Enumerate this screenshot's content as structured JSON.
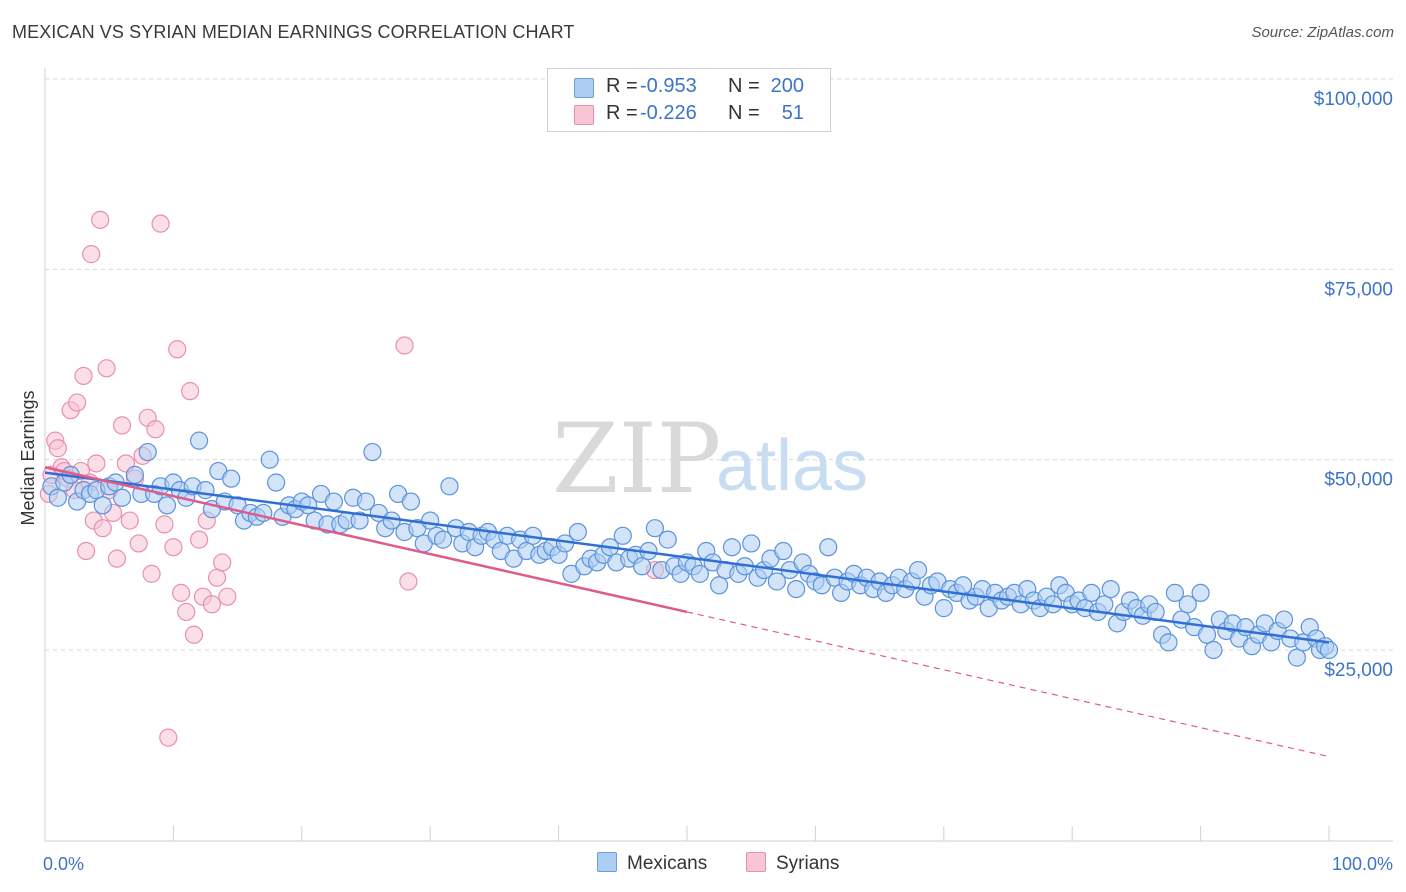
{
  "title": "MEXICAN VS SYRIAN MEDIAN EARNINGS CORRELATION CHART",
  "source": "Source: ZipAtlas.com",
  "watermark": {
    "zip": "ZIP",
    "atlas": "atlas"
  },
  "legend": {
    "r_label": "R = ",
    "n_label": "N = ",
    "rows": [
      {
        "r": "-0.953",
        "n": "200",
        "fill": "#aecdf3",
        "stroke": "#6b9fe0"
      },
      {
        "r": "-0.226",
        "n": "51",
        "fill": "#f8c5d5",
        "stroke": "#e98fae"
      }
    ]
  },
  "bottom_legend": {
    "mexicans": "Mexicans",
    "syrians": "Syrians"
  },
  "colors": {
    "mexican_fill": "#aecdf3",
    "mexican_stroke": "#5b93db",
    "mexican_line": "#2f6fd6",
    "syrian_fill": "#f8c5d5",
    "syrian_stroke": "#e98fae",
    "syrian_line": "#e05a8a",
    "grid": "#d8d8d8",
    "axis_text": "#3d73c9"
  },
  "chart_data": {
    "type": "scatter",
    "title": "MEXICAN VS SYRIAN MEDIAN EARNINGS CORRELATION CHART",
    "xlabel": "",
    "ylabel": "Median Earnings",
    "xlim": [
      0,
      100
    ],
    "ylim": [
      5000,
      105000
    ],
    "x_tick_labels": [
      "0.0%",
      "100.0%"
    ],
    "y_ticks": [
      25000,
      50000,
      75000,
      100000
    ],
    "y_tick_labels": [
      "$25,000",
      "$50,000",
      "$75,000",
      "$100,000"
    ],
    "grid": "horizontal dashed",
    "legend_position": "top-center",
    "series": [
      {
        "name": "Mexicans",
        "r": -0.953,
        "n": 200,
        "trend": {
          "x": [
            0,
            100
          ],
          "y": [
            48300,
            26000
          ]
        },
        "points": [
          [
            0.5,
            46.5
          ],
          [
            1.0,
            45.0
          ],
          [
            1.5,
            47.0
          ],
          [
            2.0,
            48.0
          ],
          [
            2.5,
            44.5
          ],
          [
            3.0,
            46.0
          ],
          [
            3.5,
            45.5
          ],
          [
            4.0,
            46.0
          ],
          [
            4.5,
            44.0
          ],
          [
            5.0,
            46.5
          ],
          [
            5.5,
            47.0
          ],
          [
            6.0,
            45.0
          ],
          [
            7.0,
            48.0
          ],
          [
            7.5,
            45.5
          ],
          [
            8.0,
            51.0
          ],
          [
            8.5,
            45.5
          ],
          [
            9.0,
            46.5
          ],
          [
            9.5,
            44.0
          ],
          [
            10.0,
            47.0
          ],
          [
            10.5,
            46.0
          ],
          [
            11.0,
            45.0
          ],
          [
            11.5,
            46.5
          ],
          [
            12.0,
            52.5
          ],
          [
            12.5,
            46.0
          ],
          [
            13.0,
            43.5
          ],
          [
            13.5,
            48.5
          ],
          [
            14.0,
            44.5
          ],
          [
            14.5,
            47.5
          ],
          [
            15.0,
            44.0
          ],
          [
            15.5,
            42.0
          ],
          [
            16.0,
            43.0
          ],
          [
            16.5,
            42.5
          ],
          [
            17.0,
            43.0
          ],
          [
            17.5,
            50.0
          ],
          [
            18.0,
            47.0
          ],
          [
            18.5,
            42.5
          ],
          [
            19.0,
            44.0
          ],
          [
            19.5,
            43.5
          ],
          [
            20.0,
            44.5
          ],
          [
            20.5,
            44.0
          ],
          [
            21.0,
            42.0
          ],
          [
            21.5,
            45.5
          ],
          [
            22.0,
            41.5
          ],
          [
            22.5,
            44.5
          ],
          [
            23.0,
            41.5
          ],
          [
            23.5,
            42.0
          ],
          [
            24.0,
            45.0
          ],
          [
            24.5,
            42.0
          ],
          [
            25.0,
            44.5
          ],
          [
            25.5,
            51.0
          ],
          [
            26.0,
            43.0
          ],
          [
            26.5,
            41.0
          ],
          [
            27.0,
            42.0
          ],
          [
            27.5,
            45.5
          ],
          [
            28.0,
            40.5
          ],
          [
            28.5,
            44.5
          ],
          [
            29.0,
            41.0
          ],
          [
            29.5,
            39.0
          ],
          [
            30.0,
            42.0
          ],
          [
            30.5,
            40.0
          ],
          [
            31.0,
            39.5
          ],
          [
            31.5,
            46.5
          ],
          [
            32.0,
            41.0
          ],
          [
            32.5,
            39.0
          ],
          [
            33.0,
            40.5
          ],
          [
            33.5,
            38.5
          ],
          [
            34.0,
            40.0
          ],
          [
            34.5,
            40.5
          ],
          [
            35.0,
            39.5
          ],
          [
            35.5,
            38.0
          ],
          [
            36.0,
            40.0
          ],
          [
            36.5,
            37.0
          ],
          [
            37.0,
            39.5
          ],
          [
            37.5,
            38.0
          ],
          [
            38.0,
            40.0
          ],
          [
            38.5,
            37.5
          ],
          [
            39.0,
            38.0
          ],
          [
            39.5,
            38.5
          ],
          [
            40.0,
            37.5
          ],
          [
            40.5,
            39.0
          ],
          [
            41.0,
            35.0
          ],
          [
            41.5,
            40.5
          ],
          [
            42.0,
            36.0
          ],
          [
            42.5,
            37.0
          ],
          [
            43.0,
            36.5
          ],
          [
            43.5,
            37.5
          ],
          [
            44.0,
            38.5
          ],
          [
            44.5,
            36.5
          ],
          [
            45.0,
            40.0
          ],
          [
            45.5,
            37.0
          ],
          [
            46.0,
            37.5
          ],
          [
            46.5,
            36.0
          ],
          [
            47.0,
            38.0
          ],
          [
            47.5,
            41.0
          ],
          [
            48.0,
            35.5
          ],
          [
            48.5,
            39.5
          ],
          [
            49.0,
            36.0
          ],
          [
            49.5,
            35.0
          ],
          [
            50.0,
            36.5
          ],
          [
            50.5,
            36.0
          ],
          [
            51.0,
            35.0
          ],
          [
            51.5,
            38.0
          ],
          [
            52.0,
            36.5
          ],
          [
            52.5,
            33.5
          ],
          [
            53.0,
            35.5
          ],
          [
            53.5,
            38.5
          ],
          [
            54.0,
            35.0
          ],
          [
            54.5,
            36.0
          ],
          [
            55.0,
            39.0
          ],
          [
            55.5,
            34.5
          ],
          [
            56.0,
            35.5
          ],
          [
            56.5,
            37.0
          ],
          [
            57.0,
            34.0
          ],
          [
            57.5,
            38.0
          ],
          [
            58.0,
            35.5
          ],
          [
            58.5,
            33.0
          ],
          [
            59.0,
            36.5
          ],
          [
            59.5,
            35.0
          ],
          [
            60.0,
            34.0
          ],
          [
            60.5,
            33.5
          ],
          [
            61.0,
            38.5
          ],
          [
            61.5,
            34.5
          ],
          [
            62.0,
            32.5
          ],
          [
            62.5,
            34.0
          ],
          [
            63.0,
            35.0
          ],
          [
            63.5,
            33.5
          ],
          [
            64.0,
            34.5
          ],
          [
            64.5,
            33.0
          ],
          [
            65.0,
            34.0
          ],
          [
            65.5,
            32.5
          ],
          [
            66.0,
            33.5
          ],
          [
            66.5,
            34.5
          ],
          [
            67.0,
            33.0
          ],
          [
            67.5,
            34.0
          ],
          [
            68.0,
            35.5
          ],
          [
            68.5,
            32.0
          ],
          [
            69.0,
            33.5
          ],
          [
            69.5,
            34.0
          ],
          [
            70.0,
            30.5
          ],
          [
            70.5,
            33.0
          ],
          [
            71.0,
            32.5
          ],
          [
            71.5,
            33.5
          ],
          [
            72.0,
            31.5
          ],
          [
            72.5,
            32.0
          ],
          [
            73.0,
            33.0
          ],
          [
            73.5,
            30.5
          ],
          [
            74.0,
            32.5
          ],
          [
            74.5,
            31.5
          ],
          [
            75.0,
            32.0
          ],
          [
            75.5,
            32.5
          ],
          [
            76.0,
            31.0
          ],
          [
            76.5,
            33.0
          ],
          [
            77.0,
            31.5
          ],
          [
            77.5,
            30.5
          ],
          [
            78.0,
            32.0
          ],
          [
            78.5,
            31.0
          ],
          [
            79.0,
            33.5
          ],
          [
            79.5,
            32.5
          ],
          [
            80.0,
            31.0
          ],
          [
            80.5,
            31.5
          ],
          [
            81.0,
            30.5
          ],
          [
            81.5,
            32.5
          ],
          [
            82.0,
            30.0
          ],
          [
            82.5,
            31.0
          ],
          [
            83.0,
            33.0
          ],
          [
            83.5,
            28.5
          ],
          [
            84.0,
            30.0
          ],
          [
            84.5,
            31.5
          ],
          [
            85.0,
            30.5
          ],
          [
            85.5,
            29.5
          ],
          [
            86.0,
            31.0
          ],
          [
            86.5,
            30.0
          ],
          [
            87.0,
            27.0
          ],
          [
            87.5,
            26.0
          ],
          [
            88.0,
            32.5
          ],
          [
            88.5,
            29.0
          ],
          [
            89.0,
            31.0
          ],
          [
            89.5,
            28.0
          ],
          [
            90.0,
            32.5
          ],
          [
            90.5,
            27.0
          ],
          [
            91.0,
            25.0
          ],
          [
            91.5,
            29.0
          ],
          [
            92.0,
            27.5
          ],
          [
            92.5,
            28.5
          ],
          [
            93.0,
            26.5
          ],
          [
            93.5,
            28.0
          ],
          [
            94.0,
            25.5
          ],
          [
            94.5,
            27.0
          ],
          [
            95.0,
            28.5
          ],
          [
            95.5,
            26.0
          ],
          [
            96.0,
            27.5
          ],
          [
            96.5,
            29.0
          ],
          [
            97.0,
            26.5
          ],
          [
            97.5,
            24.0
          ],
          [
            98.0,
            26.0
          ],
          [
            98.5,
            28.0
          ],
          [
            99.0,
            26.5
          ],
          [
            99.3,
            25.0
          ],
          [
            99.7,
            25.5
          ],
          [
            100.0,
            25.0
          ]
        ]
      },
      {
        "name": "Syrians",
        "r": -0.226,
        "n": 51,
        "trend": {
          "x": [
            0,
            50
          ],
          "y": [
            49000,
            30000
          ]
        },
        "trend_extrapolated": {
          "x": [
            50,
            100
          ],
          "y": [
            30000,
            11000
          ]
        },
        "points": [
          [
            0.3,
            45.5
          ],
          [
            0.5,
            48.0
          ],
          [
            0.8,
            52.5
          ],
          [
            1.0,
            51.5
          ],
          [
            1.3,
            49.0
          ],
          [
            1.5,
            48.5
          ],
          [
            1.8,
            47.5
          ],
          [
            2.0,
            56.5
          ],
          [
            2.3,
            46.0
          ],
          [
            2.5,
            57.5
          ],
          [
            2.8,
            48.5
          ],
          [
            3.0,
            61.0
          ],
          [
            3.2,
            38.0
          ],
          [
            3.5,
            47.0
          ],
          [
            3.8,
            42.0
          ],
          [
            4.0,
            49.5
          ],
          [
            4.3,
            81.5
          ],
          [
            4.5,
            41.0
          ],
          [
            4.8,
            62.0
          ],
          [
            5.0,
            46.0
          ],
          [
            5.3,
            43.0
          ],
          [
            5.6,
            37.0
          ],
          [
            6.0,
            54.5
          ],
          [
            6.3,
            49.5
          ],
          [
            6.6,
            42.0
          ],
          [
            7.0,
            47.5
          ],
          [
            7.3,
            39.0
          ],
          [
            7.6,
            50.5
          ],
          [
            8.0,
            55.5
          ],
          [
            8.3,
            35.0
          ],
          [
            8.6,
            54.0
          ],
          [
            9.0,
            81.0
          ],
          [
            9.3,
            41.5
          ],
          [
            9.6,
            13.5
          ],
          [
            10.0,
            38.5
          ],
          [
            10.3,
            64.5
          ],
          [
            10.6,
            32.5
          ],
          [
            11.0,
            30.0
          ],
          [
            11.3,
            59.0
          ],
          [
            11.6,
            27.0
          ],
          [
            12.0,
            39.5
          ],
          [
            12.3,
            32.0
          ],
          [
            12.6,
            42.0
          ],
          [
            13.0,
            31.0
          ],
          [
            13.4,
            34.5
          ],
          [
            13.8,
            36.5
          ],
          [
            14.2,
            32.0
          ],
          [
            3.6,
            77.0
          ],
          [
            28.0,
            65.0
          ],
          [
            28.3,
            34.0
          ],
          [
            47.5,
            35.5
          ]
        ]
      }
    ]
  }
}
